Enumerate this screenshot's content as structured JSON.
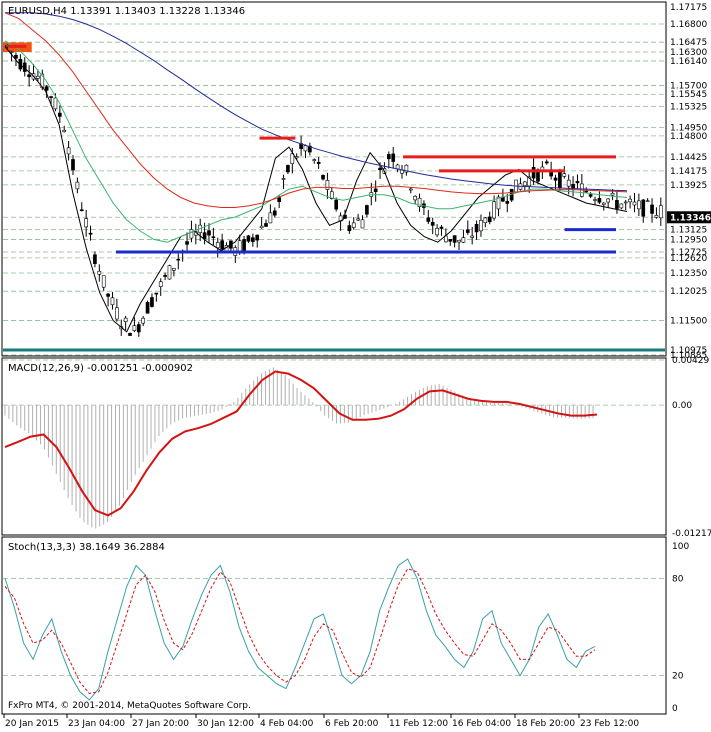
{
  "chart_data": [
    {
      "type": "line",
      "panel": "price",
      "header": "EURUSD,H4  1.13391 1.13403 1.13228 1.13346",
      "symbol": "EURUSD,H4",
      "ohlc": {
        "open": 1.13391,
        "high": 1.13403,
        "low": 1.13228,
        "close": 1.13346
      },
      "ylim": [
        1.10885,
        1.17175
      ],
      "price_labels": [
        "1.16800",
        "1.16475",
        "1.16300",
        "1.16140",
        "1.15700",
        "1.15545",
        "1.15325",
        "1.14950",
        "1.14800",
        "1.14425",
        "1.14175",
        "1.13925",
        "1.13346",
        "1.13125",
        "1.12950",
        "1.12725",
        "1.12620",
        "1.12350",
        "1.12025",
        "1.11500",
        "1.10975",
        "1.10885"
      ],
      "top_label": "1.17175",
      "current_price": 1.13346,
      "levels": {
        "red": [
          {
            "value": 1.164,
            "from": "20 Jan 2015",
            "to": "21 Jan 2015"
          },
          {
            "value": 1.1476,
            "from": "3 Feb 2015",
            "to": "5 Feb 2015"
          },
          {
            "value": 1.14425,
            "from": "11 Feb 2015",
            "to": "24 Feb 2015"
          },
          {
            "value": 1.14175,
            "from": "13 Feb 2015",
            "to": "20 Feb 2015"
          }
        ],
        "blue": [
          {
            "value": 1.12725,
            "from": "26 Jan 2015",
            "to": "24 Feb 2015"
          },
          {
            "value": 1.13125,
            "from": "20 Feb 2015",
            "to": "24 Feb 2015"
          }
        ],
        "teal": [
          {
            "value": 1.10975
          }
        ]
      },
      "series": [
        {
          "values": [
            1.164,
            1.161,
            1.159,
            1.156,
            1.15,
            1.138,
            1.128,
            1.12,
            1.115,
            1.113,
            1.118,
            1.122,
            1.126,
            1.13,
            1.131,
            1.129,
            1.1275,
            1.129,
            1.132,
            1.135,
            1.144,
            1.146,
            1.142,
            1.136,
            1.132,
            1.133,
            1.14,
            1.145,
            1.142,
            1.136,
            1.132,
            1.13,
            1.129,
            1.131,
            1.134,
            1.137,
            1.139,
            1.141,
            1.142,
            1.14,
            1.139,
            1.138,
            1.137,
            1.136,
            1.1355,
            1.135,
            1.1345
          ]
        },
        {
          "values": [
            1.165,
            1.1635,
            1.161,
            1.158,
            1.154,
            1.149,
            1.144,
            1.14,
            1.136,
            1.133,
            1.131,
            1.1295,
            1.129,
            1.13,
            1.131,
            1.132,
            1.133,
            1.1335,
            1.1345,
            1.1355,
            1.137,
            1.1385,
            1.139,
            1.138,
            1.137,
            1.1365,
            1.137,
            1.1375,
            1.1375,
            1.137,
            1.136,
            1.1355,
            1.135,
            1.135,
            1.1355,
            1.136,
            1.1365,
            1.1372,
            1.138,
            1.1385,
            1.1385,
            1.1382,
            1.138,
            1.1378,
            1.1375,
            1.1372,
            1.137
          ]
        },
        {
          "values": [
            1.17,
            1.169,
            1.167,
            1.165,
            1.1625,
            1.1595,
            1.156,
            1.1525,
            1.149,
            1.146,
            1.143,
            1.1405,
            1.1385,
            1.137,
            1.136,
            1.1355,
            1.1352,
            1.1352,
            1.1355,
            1.136,
            1.1368,
            1.1378,
            1.1385,
            1.1388,
            1.1388,
            1.1386,
            1.1386,
            1.1388,
            1.139,
            1.139,
            1.1388,
            1.1386,
            1.1383,
            1.138,
            1.1378,
            1.1377,
            1.1377,
            1.1378,
            1.138,
            1.1382,
            1.1383,
            1.1384,
            1.1384,
            1.1383,
            1.1382,
            1.1381,
            1.138
          ]
        },
        {
          "values": [
            1.17,
            1.17,
            1.17,
            1.1698,
            1.1694,
            1.1688,
            1.168,
            1.167,
            1.1658,
            1.1645,
            1.163,
            1.1615,
            1.1598,
            1.1582,
            1.1565,
            1.1549,
            1.1533,
            1.1518,
            1.1505,
            1.1492,
            1.1482,
            1.1473,
            1.1465,
            1.1457,
            1.145,
            1.1443,
            1.1437,
            1.1431,
            1.1426,
            1.1421,
            1.1416,
            1.1411,
            1.1407,
            1.1403,
            1.14,
            1.1397,
            1.1394,
            1.1392,
            1.139,
            1.1389,
            1.1388,
            1.1387,
            1.1386,
            1.1385,
            1.1384,
            1.1383,
            1.1382
          ]
        }
      ]
    },
    {
      "type": "line",
      "panel": "macd",
      "header": "MACD(12,26,9) -0.001251 -0.000902",
      "ylim": [
        -0.01217,
        0.00429
      ],
      "tick_labels": [
        "0.00429",
        "0.00",
        "-0.012175"
      ],
      "histogram": [
        -0.001,
        -0.002,
        -0.0028,
        -0.004,
        -0.0065,
        -0.009,
        -0.011,
        -0.0118,
        -0.0112,
        -0.0095,
        -0.007,
        -0.005,
        -0.003,
        -0.0018,
        -0.0012,
        -0.001,
        -0.0008,
        -0.0004,
        0.0004,
        0.0018,
        0.003,
        0.0036,
        0.0028,
        0.0014,
        0.0004,
        -0.001,
        -0.0018,
        -0.0016,
        -0.001,
        -0.0006,
        -0.0002,
        0.0004,
        0.0012,
        0.0018,
        0.002,
        0.0014,
        0.0008,
        0.0004,
        0.0002,
        0.0002,
        0.0,
        -0.0004,
        -0.0008,
        -0.0012,
        -0.0012,
        -0.0013,
        -0.00125
      ],
      "signal": [
        -0.004,
        -0.0035,
        -0.003,
        -0.0028,
        -0.004,
        -0.006,
        -0.0082,
        -0.01,
        -0.0105,
        -0.0098,
        -0.0082,
        -0.0062,
        -0.0045,
        -0.0032,
        -0.0025,
        -0.0022,
        -0.0018,
        -0.0012,
        -0.0006,
        0.001,
        0.0024,
        0.0032,
        0.003,
        0.0024,
        0.0016,
        0.0004,
        -0.0008,
        -0.0014,
        -0.0014,
        -0.0013,
        -0.001,
        -0.0004,
        0.0006,
        0.0013,
        0.0014,
        0.001,
        0.0006,
        0.0004,
        0.0003,
        0.0003,
        0.0001,
        -0.0002,
        -0.0005,
        -0.0008,
        -0.001,
        -0.001,
        -0.0009
      ]
    },
    {
      "type": "line",
      "panel": "stochastic",
      "header": "Stoch(13,3,3) 38.1649 36.2884",
      "ylim": [
        0,
        100
      ],
      "tick_labels": [
        "100",
        "80",
        "20",
        "0"
      ],
      "k": [
        80,
        62,
        40,
        30,
        45,
        55,
        35,
        20,
        10,
        5,
        12,
        35,
        55,
        75,
        88,
        82,
        60,
        40,
        30,
        38,
        55,
        70,
        82,
        88,
        72,
        50,
        35,
        25,
        20,
        15,
        12,
        25,
        40,
        55,
        58,
        40,
        20,
        15,
        20,
        35,
        60,
        75,
        88,
        92,
        80,
        60,
        45,
        38,
        30,
        25,
        35,
        55,
        60,
        40,
        30,
        20,
        30,
        50,
        58,
        45,
        30,
        25,
        35,
        38
      ],
      "d": [
        75,
        68,
        52,
        40,
        42,
        48,
        40,
        28,
        16,
        9,
        10,
        22,
        40,
        58,
        76,
        82,
        72,
        54,
        40,
        36,
        46,
        60,
        74,
        84,
        78,
        62,
        46,
        34,
        26,
        20,
        16,
        20,
        30,
        44,
        52,
        48,
        34,
        22,
        19,
        25,
        42,
        60,
        76,
        86,
        84,
        72,
        58,
        48,
        40,
        33,
        32,
        42,
        52,
        48,
        40,
        30,
        30,
        40,
        50,
        48,
        40,
        32,
        32,
        36
      ]
    }
  ],
  "x_labels": [
    "20 Jan 2015",
    "23 Jan 04:00",
    "27 Jan 20:00",
    "30 Jan 12:00",
    "4 Feb 04:00",
    "6 Feb 20:00",
    "11 Feb 12:00",
    "16 Feb 04:00",
    "18 Feb 20:00",
    "23 Feb 12:00"
  ],
  "copyright": "FxPro MT4, © 2001-2014, MetaQuotes Software Corp.",
  "colors": {
    "background": "#ffffff",
    "candle": "#000000",
    "ma_fast": "#000000",
    "ma_green": "#3cb371",
    "ma_red": "#dd2a1a",
    "ma_blue": "#1f2a9a",
    "level_red": "#e81e1e",
    "level_blue": "#1a2bd0",
    "level_teal": "#1a7a7a",
    "zone_orange": "#f4520f",
    "grid": "#8fbc8f",
    "macd_hist": "#b0b0b0",
    "macd_signal": "#d31414",
    "stoch_k": "#3aa0a8",
    "stoch_d": "#d31414",
    "price_tag_bg": "#000000",
    "price_tag_fg": "#ffffff"
  }
}
